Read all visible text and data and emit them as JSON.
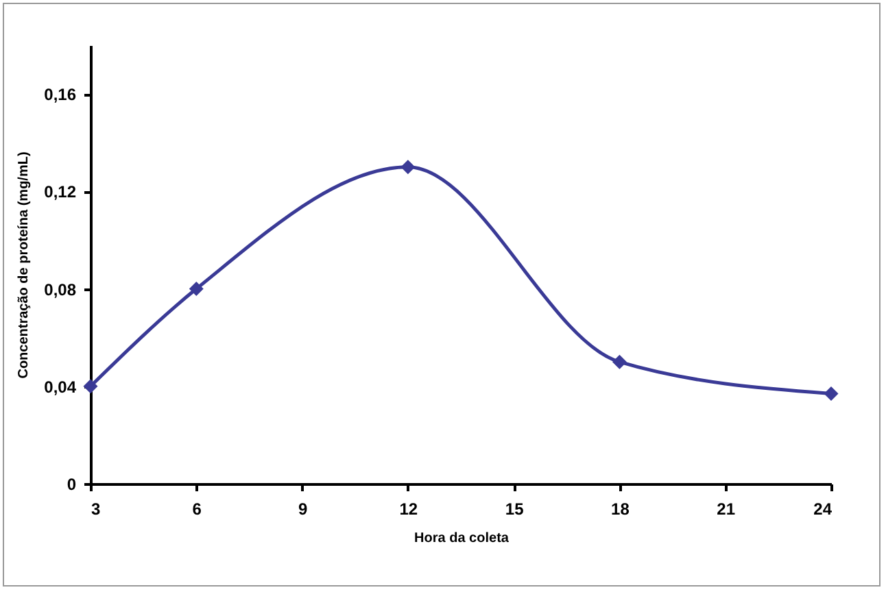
{
  "chart_data": {
    "type": "line",
    "xlabel": "Hora da coleta",
    "ylabel": "Concentração de proteína (mg/mL)",
    "x": [
      3,
      6,
      12,
      18,
      24
    ],
    "series": [
      {
        "color": "#3a3a96",
        "values": [
          0.04,
          0.08,
          0.13,
          0.05,
          0.037
        ]
      }
    ],
    "xlim": [
      3,
      24
    ],
    "xticks": [
      3,
      6,
      9,
      12,
      15,
      18,
      21,
      24
    ],
    "ylim": [
      0,
      0.18
    ],
    "yticks": [
      0,
      {
        "value": 0.04,
        "label": "0,04"
      },
      {
        "value": 0.08,
        "label": "0,08"
      },
      {
        "value": 0.12,
        "label": "0,12"
      },
      {
        "value": 0.16,
        "label": "0,16"
      }
    ],
    "grid": false,
    "marker": "diamond",
    "line_style": "solid"
  }
}
